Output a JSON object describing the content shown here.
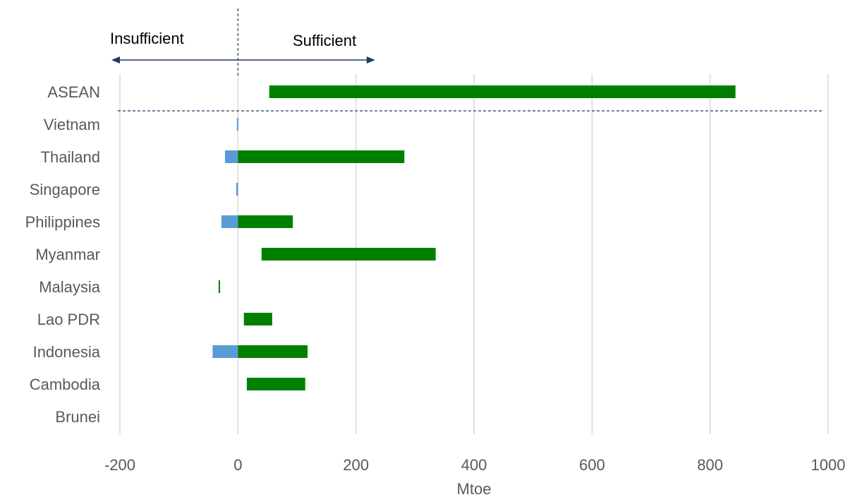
{
  "chart_data": {
    "type": "bar",
    "orientation": "horizontal",
    "xlabel": "Mtoe",
    "xlim": [
      -200,
      1000
    ],
    "x_ticks": [
      -200,
      0,
      200,
      400,
      600,
      800,
      1000
    ],
    "x_tick_labels": [
      "-200",
      "0",
      "200",
      "400",
      "600",
      "800",
      "1000"
    ],
    "grid": true,
    "categories": [
      "ASEAN",
      "Vietnam",
      "Thailand",
      "Singapore",
      "Philippines",
      "Myanmar",
      "Malaysia",
      "Lao PDR",
      "Indonesia",
      "Cambodia",
      "Brunei"
    ],
    "series": [
      {
        "color": "#5b9bd5",
        "ranges": [
          [
            0,
            0
          ],
          [
            -1,
            0
          ],
          [
            -22,
            0
          ],
          [
            -3,
            0
          ],
          [
            -28,
            0
          ],
          [
            0,
            0
          ],
          [
            0,
            0
          ],
          [
            0,
            0
          ],
          [
            -43,
            0
          ],
          [
            0,
            0
          ],
          [
            0,
            0
          ]
        ]
      },
      {
        "color": "#008000",
        "ranges": [
          [
            53,
            843
          ],
          [
            0,
            0
          ],
          [
            0,
            282
          ],
          [
            0,
            0
          ],
          [
            0,
            93
          ],
          [
            40,
            335
          ],
          [
            -32,
            -31
          ],
          [
            10,
            58
          ],
          [
            0,
            118
          ],
          [
            15,
            114
          ],
          [
            0,
            0
          ]
        ]
      }
    ],
    "annotations": {
      "left_label": "Insufficient",
      "right_label": "Sufficient",
      "arrow_from": -200,
      "arrow_to": 230,
      "divider_at": 0
    }
  }
}
